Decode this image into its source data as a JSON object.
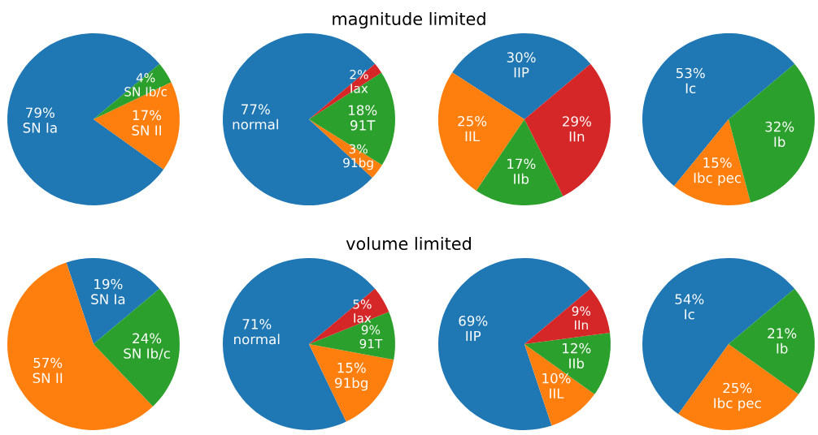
{
  "chart_data": [
    {
      "type": "pie",
      "title": "magnitude limited",
      "categories": [
        "SN Ia",
        "SN II",
        "SN Ib/c"
      ],
      "values": [
        79,
        17,
        4
      ],
      "value_labels": [
        "79%",
        "17%",
        "4%"
      ],
      "colors": [
        "#1f77b4",
        "#ff7f0e",
        "#2ca02c"
      ]
    },
    {
      "type": "pie",
      "categories": [
        "normal",
        "91bg",
        "91T",
        "Iax"
      ],
      "values": [
        77,
        3,
        18,
        2
      ],
      "value_labels": [
        "77%",
        "3%",
        "18%",
        "2%"
      ],
      "colors": [
        "#1f77b4",
        "#ff7f0e",
        "#2ca02c",
        "#d62728"
      ]
    },
    {
      "type": "pie",
      "categories": [
        "IIP",
        "IIL",
        "IIb",
        "IIn"
      ],
      "values": [
        30,
        25,
        17,
        29
      ],
      "value_labels": [
        "30%",
        "25%",
        "17%",
        "29%"
      ],
      "colors": [
        "#1f77b4",
        "#ff7f0e",
        "#2ca02c",
        "#d62728"
      ]
    },
    {
      "type": "pie",
      "categories": [
        "Ic",
        "Ibc pec",
        "Ib"
      ],
      "values": [
        53,
        15,
        32
      ],
      "value_labels": [
        "53%",
        "15%",
        "32%"
      ],
      "colors": [
        "#1f77b4",
        "#ff7f0e",
        "#2ca02c"
      ]
    },
    {
      "type": "pie",
      "title": "volume limited",
      "categories": [
        "SN Ia",
        "SN II",
        "SN Ib/c"
      ],
      "values": [
        19,
        57,
        24
      ],
      "value_labels": [
        "19%",
        "57%",
        "24%"
      ],
      "colors": [
        "#1f77b4",
        "#ff7f0e",
        "#2ca02c"
      ]
    },
    {
      "type": "pie",
      "categories": [
        "normal",
        "91bg",
        "91T",
        "Iax"
      ],
      "values": [
        71,
        15,
        9,
        5
      ],
      "value_labels": [
        "71%",
        "15%",
        "9%",
        "5%"
      ],
      "colors": [
        "#1f77b4",
        "#ff7f0e",
        "#2ca02c",
        "#d62728"
      ]
    },
    {
      "type": "pie",
      "categories": [
        "IIP",
        "IIL",
        "IIb",
        "IIn"
      ],
      "values": [
        69,
        10,
        12,
        9
      ],
      "value_labels": [
        "69%",
        "10%",
        "12%",
        "9%"
      ],
      "colors": [
        "#1f77b4",
        "#ff7f0e",
        "#2ca02c",
        "#d62728"
      ]
    },
    {
      "type": "pie",
      "categories": [
        "Ic",
        "Ibc pec",
        "Ib"
      ],
      "values": [
        54,
        25,
        21
      ],
      "value_labels": [
        "54%",
        "25%",
        "21%"
      ],
      "colors": [
        "#1f77b4",
        "#ff7f0e",
        "#2ca02c"
      ]
    }
  ]
}
